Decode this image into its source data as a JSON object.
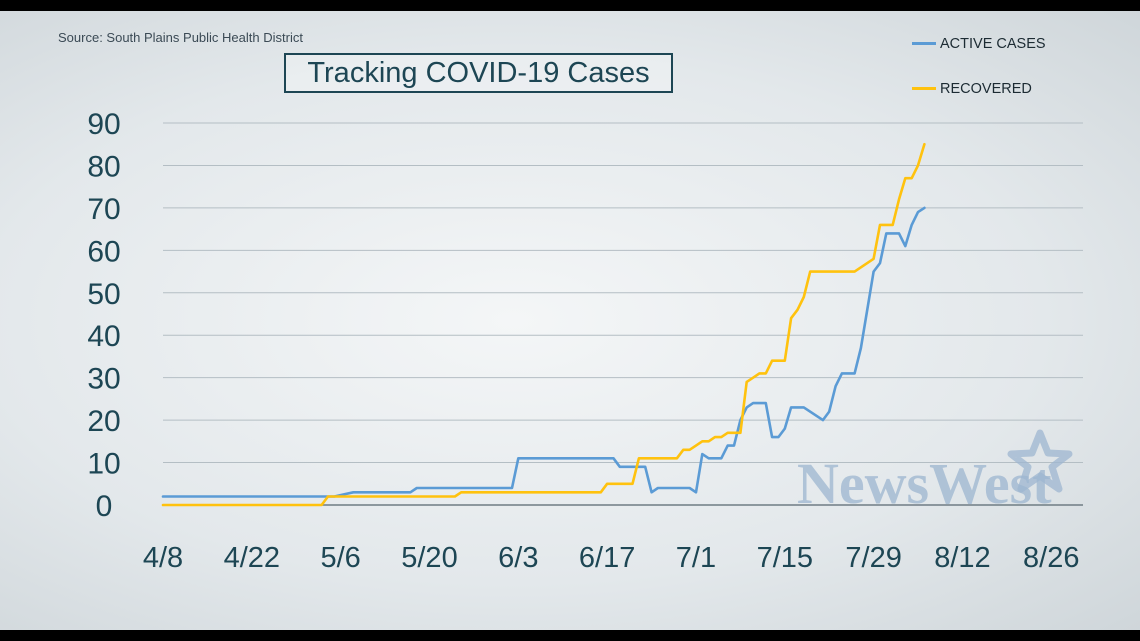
{
  "source": "Source: South Plains Public Health District",
  "title": "Tracking COVID-19 Cases",
  "watermark": "NewsWest",
  "chart_data": {
    "type": "line",
    "title": "Tracking COVID-19 Cases",
    "xlabel": "",
    "ylabel": "",
    "x_ticks": [
      "4/8",
      "4/22",
      "5/6",
      "5/20",
      "6/3",
      "6/17",
      "7/1",
      "7/15",
      "7/29",
      "8/12",
      "8/26"
    ],
    "y_ticks": [
      0,
      10,
      20,
      30,
      40,
      50,
      60,
      70,
      80,
      90
    ],
    "xlim": [
      "4/8",
      "8/31"
    ],
    "ylim": [
      0,
      90
    ],
    "grid": true,
    "legend": "top-right",
    "series": [
      {
        "name": "ACTIVE CASES",
        "color": "#5b9bd5",
        "x": [
          "4/8",
          "5/4",
          "5/5",
          "5/8",
          "5/17",
          "5/18",
          "5/31",
          "6/1",
          "6/2",
          "6/3",
          "6/18",
          "6/19",
          "6/23",
          "6/24",
          "6/25",
          "6/30",
          "6/31",
          "7/1",
          "7/2",
          "7/3",
          "7/5",
          "7/6",
          "7/7",
          "7/8",
          "7/9",
          "7/10",
          "7/11",
          "7/12",
          "7/13",
          "7/14",
          "7/15",
          "7/16",
          "7/17",
          "7/18",
          "7/21",
          "7/22",
          "7/23",
          "7/24",
          "7/25",
          "7/26",
          "7/27",
          "7/29",
          "7/30",
          "7/31",
          "8/2",
          "8/3",
          "8/4",
          "8/5",
          "8/6"
        ],
        "values": [
          2,
          2,
          2,
          3,
          3,
          4,
          4,
          4,
          4,
          11,
          11,
          9,
          9,
          3,
          4,
          4,
          3,
          3,
          12,
          11,
          11,
          14,
          14,
          20,
          23,
          24,
          24,
          24,
          16,
          16,
          18,
          23,
          23,
          23,
          20,
          22,
          28,
          31,
          31,
          31,
          37,
          55,
          57,
          64,
          64,
          61,
          66,
          69,
          70
        ]
      },
      {
        "name": "RECOVERED",
        "color": "#ffc20e",
        "x": [
          "4/8",
          "5/3",
          "5/4",
          "5/24",
          "5/25",
          "6/16",
          "6/17",
          "6/18",
          "6/21",
          "6/22",
          "6/28",
          "6/29",
          "6/30",
          "7/1",
          "7/2",
          "7/3",
          "7/4",
          "7/5",
          "7/6",
          "7/7",
          "7/8",
          "7/9",
          "7/10",
          "7/11",
          "7/12",
          "7/13",
          "7/14",
          "7/15",
          "7/16",
          "7/17",
          "7/18",
          "7/19",
          "7/20",
          "7/21",
          "7/22",
          "7/23",
          "7/24",
          "7/25",
          "7/26",
          "7/29",
          "7/30",
          "7/31",
          "8/1",
          "8/2",
          "8/3",
          "8/4",
          "8/5",
          "8/6"
        ],
        "values": [
          0,
          0,
          2,
          2,
          3,
          3,
          5,
          5,
          5,
          11,
          11,
          13,
          13,
          14,
          15,
          15,
          16,
          16,
          17,
          17,
          17,
          29,
          30,
          31,
          31,
          34,
          34,
          34,
          44,
          46,
          49,
          55,
          55,
          55,
          55,
          55,
          55,
          55,
          55,
          58,
          66,
          66,
          66,
          72,
          77,
          77,
          80,
          85
        ]
      }
    ]
  }
}
